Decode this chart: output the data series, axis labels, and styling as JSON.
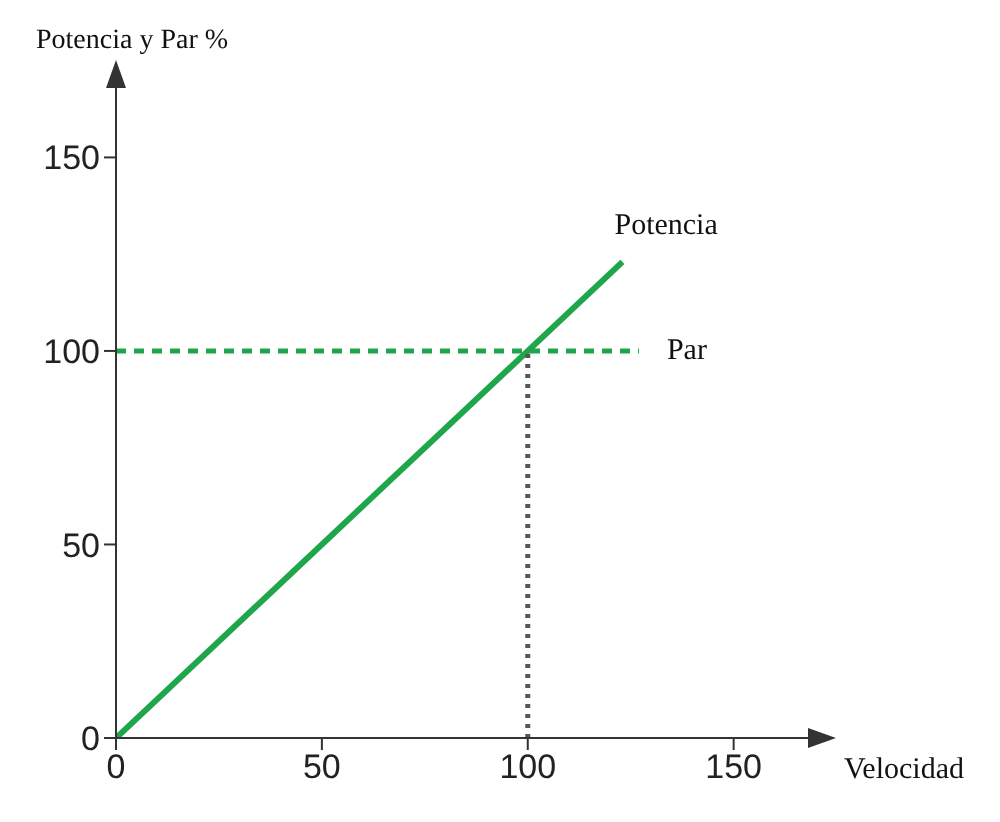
{
  "chart_data": {
    "type": "line",
    "ylabel": "Potencia y Par %",
    "xlabel": "Velocidad",
    "xlim": [
      0,
      170
    ],
    "xticks": [
      0,
      50,
      100,
      150
    ],
    "ylim": [
      0,
      170
    ],
    "yticks": [
      0,
      50,
      100,
      150
    ],
    "marker": "none",
    "series": [
      {
        "name": "Potencia",
        "color": "#1fa54b",
        "x": [
          0,
          123
        ],
        "values": [
          0,
          123
        ],
        "line_style": "solid"
      },
      {
        "name": "Par",
        "color": "#1fa54b",
        "x": [
          0,
          127
        ],
        "values": [
          100,
          100
        ],
        "line_style": "dashed"
      },
      {
        "color": "#555555",
        "x": [
          100,
          100
        ],
        "values": [
          0,
          100
        ],
        "line_style": "dotted"
      }
    ]
  }
}
